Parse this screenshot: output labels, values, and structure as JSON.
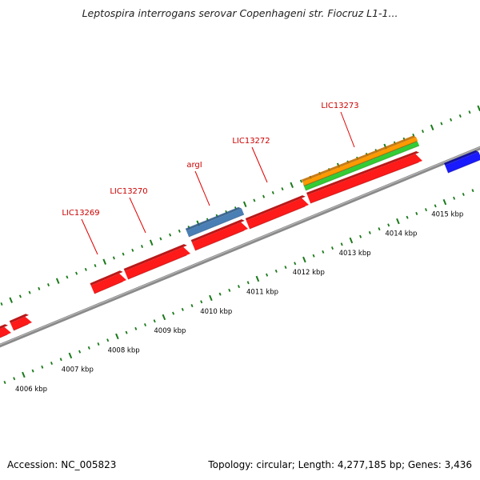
{
  "title": "Leptospira interrogans serovar Copenhageni str. Fiocruz L1-1...",
  "footer": {
    "accession": "Accession: NC_005823",
    "summary": "Topology: circular; Length: 4,277,185 bp; Genes: 3,436"
  },
  "colors": {
    "backbone": "#8a8a8a",
    "tick": "#1a7a1a",
    "gene_forward": "#ff1a1a",
    "gene_label": "#cc0000",
    "trna": "#4a7fb5",
    "feature_orange": "#ff9900",
    "feature_green": "#33cc33",
    "gene_reverse": "#1a1aff"
  },
  "gene_labels": [
    {
      "id": "label-lic13269",
      "text": "LIC13269"
    },
    {
      "id": "label-lic13270",
      "text": "LIC13270"
    },
    {
      "id": "label-argi",
      "text": "argI"
    },
    {
      "id": "label-lic13272",
      "text": "LIC13272"
    },
    {
      "id": "label-lic13273",
      "text": "LIC13273"
    }
  ],
  "kbp_labels": [
    "4006 kbp",
    "4007 kbp",
    "4008 kbp",
    "4009 kbp",
    "4010 kbp",
    "4011 kbp",
    "4012 kbp",
    "4013 kbp",
    "4014 kbp",
    "4015 kbp"
  ]
}
